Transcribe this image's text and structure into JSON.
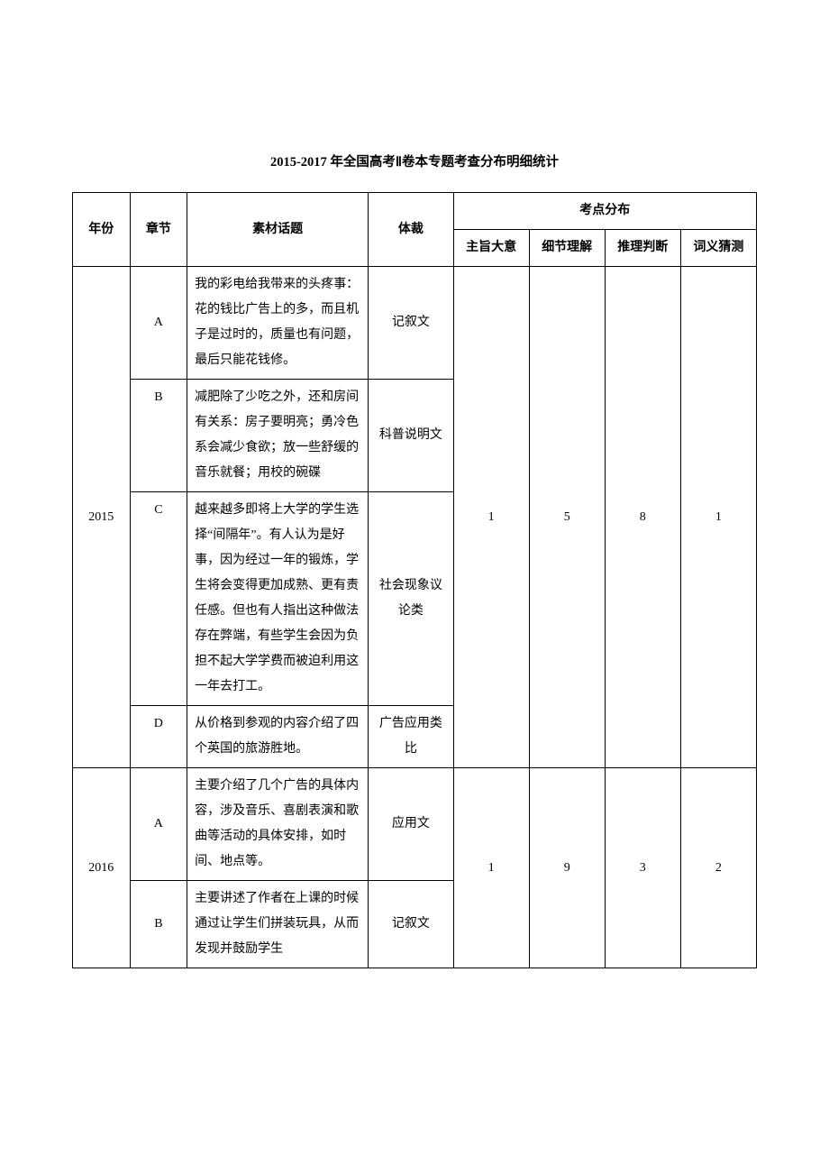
{
  "title": "2015-2017 年全国高考Ⅱ卷本专题考查分布明细统计",
  "columns": {
    "header_row1": {
      "year": "年份",
      "chapter": "章节",
      "topic": "素材话题",
      "genre": "体裁",
      "points_group": "考点分布"
    },
    "header_row2": {
      "p1": "主旨大意",
      "p2": "细节理解",
      "p3": "推理判断",
      "p4": "词义猜测"
    }
  },
  "rows": [
    {
      "year": "2015",
      "points": {
        "p1": "1",
        "p2": "5",
        "p3": "8",
        "p4": "1"
      },
      "items": [
        {
          "chapter": "A",
          "topic": "我的彩电给我带来的头疼事：花的钱比广告上的多，而且机子是过时的，质量也有问题，最后只能花钱修。",
          "genre": "记叙文"
        },
        {
          "chapter": "B",
          "topic": "减肥除了少吃之外，还和房间有关系：房子要明亮；勇冷色系会减少食欲；放一些舒缓的音乐就餐；用校的碗碟",
          "genre": "科普说明文"
        },
        {
          "chapter": "C",
          "topic": "越来越多即将上大学的学生选择“间隔年”。有人认为是好事，因为经过一年的锻炼，学生将会变得更加成熟、更有责任感。但也有人指出这种做法存在弊端，有些学生会因为负担不起大学学费而被迫利用这一年去打工。",
          "genre": "社会现象议论类"
        },
        {
          "chapter": "D",
          "topic": "从价格到参观的内容介绍了四个英国的旅游胜地。",
          "genre": "广告应用类比"
        }
      ]
    },
    {
      "year": "2016",
      "points": {
        "p1": "1",
        "p2": "9",
        "p3": "3",
        "p4": "2"
      },
      "items": [
        {
          "chapter": "A",
          "topic": "主要介绍了几个广告的具体内容，涉及音乐、喜剧表演和歌曲等活动的具体安排，如时间、地点等。",
          "genre": "应用文"
        },
        {
          "chapter": "B",
          "topic": "主要讲述了作者在上课的时候通过让学生们拼装玩具，从而发现并鼓励学生",
          "genre": "记叙文"
        }
      ]
    }
  ]
}
